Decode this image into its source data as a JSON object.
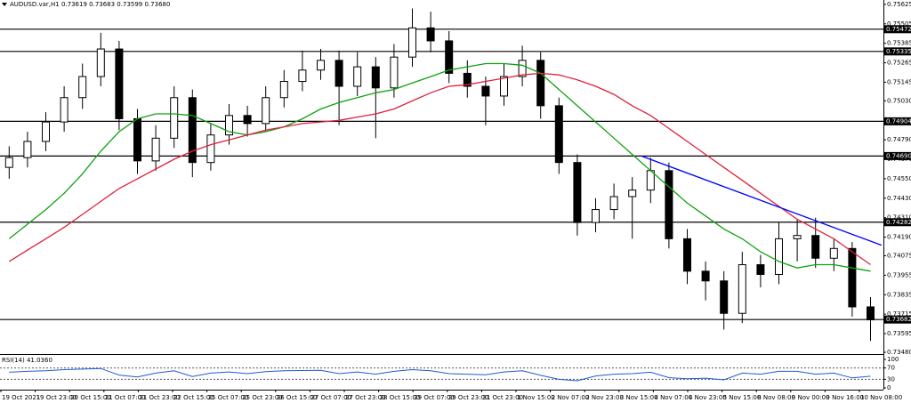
{
  "chart_data": {
    "type": "candlestick",
    "title": "AUDUSD.var,H1  0.73619 0.73683 0.73599 0.73680",
    "ylim": [
      0.73469,
      0.75652
    ],
    "yticks": [
      0.75625,
      0.75505,
      0.75385,
      0.75265,
      0.75145,
      {
        "value": 0.7503,
        "label": "0.75030"
      },
      {
        "value": 0.7491,
        "label": "0.74910"
      },
      {
        "value": 0.7479,
        "label": "0.74790"
      },
      {
        "value": 0.7467,
        "label": "0.74670"
      },
      {
        "value": 0.7455,
        "label": "0.74550"
      },
      {
        "value": 0.7443,
        "label": "0.74430"
      },
      {
        "value": 0.7431,
        "label": "0.74310"
      },
      {
        "value": 0.7419,
        "label": "0.74190"
      },
      0.74075,
      0.73955,
      0.73835,
      0.73715,
      0.73595,
      {
        "value": 0.7348,
        "label": "0.73480"
      }
    ],
    "xtick_labels": [
      "19 Oct 2021",
      "19 Oct 23:00",
      "20 Oct 15:00",
      "21 Oct 07:00",
      "21 Oct 23:00",
      "22 Oct 15:00",
      "25 Oct 07:00",
      "25 Oct 23:00",
      "26 Oct 15:00",
      "27 Oct 07:00",
      "27 Oct 23:00",
      "28 Oct 15:00",
      "29 Oct 07:00",
      "29 Oct 23:00",
      "31 Oct 23:00",
      "1 Nov 15:00",
      "2 Nov 07:00",
      "2 Nov 23:00",
      "3 Nov 15:00",
      "4 Nov 07:00",
      "4 Nov 23:00",
      "5 Nov 15:00",
      "8 Nov 08:00",
      "9 Nov 00:00",
      "9 Nov 16:00",
      "10 Nov 08:00"
    ],
    "open": [
      0.7462,
      0.7468,
      0.7478,
      0.749,
      0.7505,
      0.7518,
      0.7535,
      0.7492,
      0.7466,
      0.748,
      0.7505,
      0.7465,
      0.7482,
      0.7494,
      0.7489,
      0.7505,
      0.7515,
      0.7522,
      0.7528,
      0.7512,
      0.7524,
      0.7511,
      0.753,
      0.7548,
      0.754,
      0.752,
      0.7512,
      0.7506,
      0.7518,
      0.7528,
      0.75,
      0.7465,
      0.7428,
      0.7436,
      0.7444,
      0.7448,
      0.746,
      0.7418,
      0.7398,
      0.7392,
      0.7372,
      0.7402,
      0.7396,
      0.7418,
      0.742,
      0.7406,
      0.7412,
      0.7376
    ],
    "high": [
      0.7475,
      0.7484,
      0.7496,
      0.7512,
      0.7526,
      0.7545,
      0.754,
      0.7498,
      0.7488,
      0.7512,
      0.751,
      0.7489,
      0.7501,
      0.75,
      0.7512,
      0.7522,
      0.7534,
      0.7535,
      0.7534,
      0.7533,
      0.753,
      0.7538,
      0.756,
      0.7558,
      0.7546,
      0.7528,
      0.7518,
      0.7526,
      0.7537,
      0.7533,
      0.7505,
      0.747,
      0.7443,
      0.7452,
      0.7456,
      0.7468,
      0.7465,
      0.7424,
      0.7404,
      0.7398,
      0.741,
      0.7408,
      0.7428,
      0.743,
      0.7431,
      0.7418,
      0.7416,
      0.7382
    ],
    "low": [
      0.7455,
      0.7462,
      0.7472,
      0.7484,
      0.7498,
      0.7512,
      0.7485,
      0.7458,
      0.746,
      0.7474,
      0.7456,
      0.746,
      0.7476,
      0.7481,
      0.7484,
      0.7499,
      0.7509,
      0.7516,
      0.7488,
      0.7506,
      0.748,
      0.7505,
      0.7524,
      0.7533,
      0.7514,
      0.7505,
      0.7488,
      0.75,
      0.7512,
      0.7492,
      0.7458,
      0.742,
      0.7422,
      0.743,
      0.7418,
      0.744,
      0.7412,
      0.739,
      0.738,
      0.7362,
      0.7366,
      0.7388,
      0.739,
      0.7404,
      0.74,
      0.7398,
      0.737,
      0.7355
    ],
    "close": [
      0.7468,
      0.7478,
      0.749,
      0.7505,
      0.7518,
      0.7535,
      0.7492,
      0.7466,
      0.748,
      0.7505,
      0.7465,
      0.7482,
      0.7494,
      0.7489,
      0.7505,
      0.7515,
      0.7522,
      0.7528,
      0.7512,
      0.7524,
      0.7511,
      0.753,
      0.7548,
      0.754,
      0.752,
      0.7512,
      0.7506,
      0.7518,
      0.7528,
      0.75,
      0.7465,
      0.7428,
      0.7436,
      0.7444,
      0.7448,
      0.746,
      0.7418,
      0.7398,
      0.7392,
      0.7372,
      0.7402,
      0.7396,
      0.7418,
      0.742,
      0.7406,
      0.7412,
      0.7376,
      0.7368
    ],
    "ma_lines": [
      {
        "color": "#10a010",
        "values": [
          0.7418,
          0.7427,
          0.7436,
          0.7446,
          0.7458,
          0.7472,
          0.7484,
          0.7492,
          0.7495,
          0.7495,
          0.7494,
          0.7489,
          0.7484,
          0.7482,
          0.7484,
          0.7487,
          0.7492,
          0.7498,
          0.7502,
          0.7505,
          0.7508,
          0.751,
          0.7514,
          0.7518,
          0.7522,
          0.7524,
          0.7526,
          0.7526,
          0.7525,
          0.752,
          0.751,
          0.75,
          0.749,
          0.748,
          0.747,
          0.746,
          0.745,
          0.744,
          0.7432,
          0.7424,
          0.7418,
          0.741,
          0.7404,
          0.74,
          0.7402,
          0.7402,
          0.74,
          0.7398
        ]
      },
      {
        "color": "#e0203c",
        "values": [
          0.7404,
          0.7411,
          0.7418,
          0.7425,
          0.7433,
          0.7441,
          0.7449,
          0.7455,
          0.7461,
          0.7467,
          0.7472,
          0.7476,
          0.7479,
          0.7482,
          0.7485,
          0.7487,
          0.7489,
          0.749,
          0.7491,
          0.7493,
          0.7495,
          0.7498,
          0.7503,
          0.7508,
          0.7512,
          0.7513,
          0.7515,
          0.7517,
          0.7519,
          0.752,
          0.7519,
          0.7516,
          0.7512,
          0.7507,
          0.75,
          0.7494,
          0.7486,
          0.7478,
          0.747,
          0.7462,
          0.7454,
          0.7446,
          0.7438,
          0.743,
          0.7424,
          0.7418,
          0.741,
          0.7402
        ]
      }
    ],
    "levels": [
      0.75472,
      0.75335,
      0.74904,
      {
        "value": 0.7469,
        "label": "0.74690"
      },
      0.74282,
      0.73682
    ],
    "trendline": {
      "color": "#0000ff",
      "index": [
        34.5,
        47.6
      ],
      "values": [
        0.7469,
        0.7414
      ]
    },
    "rsi": {
      "title": "RSI(14) 41.0360",
      "color": "#1e5ad0",
      "ylim": [
        0,
        100
      ],
      "yticks": [
        100,
        70,
        30,
        0
      ],
      "values": [
        55,
        58,
        60,
        64,
        66,
        68,
        45,
        38,
        52,
        60,
        40,
        52,
        56,
        50,
        57,
        60,
        61,
        62,
        50,
        56,
        48,
        58,
        64,
        60,
        50,
        48,
        46,
        56,
        60,
        44,
        30,
        25,
        42,
        48,
        50,
        55,
        36,
        32,
        34,
        28,
        52,
        48,
        58,
        58,
        48,
        52,
        35,
        41
      ]
    }
  }
}
